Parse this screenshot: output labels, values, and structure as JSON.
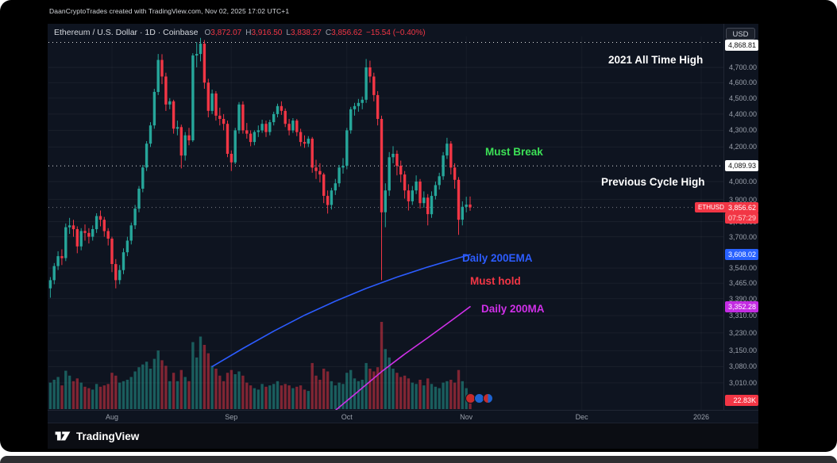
{
  "page": {
    "attribution": "DaanCryptoTrades created with TradingView.com, Nov 02, 2025 17:02 UTC+1"
  },
  "header": {
    "symbol_line": "Ethereum / U.S. Dollar · 1D · Coinbase",
    "ohlc": {
      "o_label": "O",
      "o": "3,872.07",
      "h_label": "H",
      "h": "3,916.50",
      "l_label": "L",
      "l": "3,838.27",
      "c_label": "C",
      "c": "3,856.62",
      "change": "−15.54 (−0.40%)"
    },
    "currency_button": "USD"
  },
  "annotations": {
    "ath": "2021 All Time High",
    "must_break": "Must Break",
    "prev_cycle": "Previous Cycle High",
    "ema": "Daily 200EMA",
    "must_hold": "Must hold",
    "ma": "Daily 200MA"
  },
  "symbol_chip": "ETHUSD",
  "footer": {
    "brand": "TradingView"
  },
  "colors": {
    "up": "#26a69a",
    "down": "#f23645",
    "vol_up": "rgba(38,166,154,0.5)",
    "vol_down": "rgba(242,54,69,0.5)",
    "ema": "#2c5cff",
    "ma": "#cf30e8",
    "accent_red": "#f23645",
    "accent_blue": "#2962ff",
    "accent_magenta": "#c32ce2"
  },
  "chart_data": {
    "type": "candlestick",
    "symbol": "ETHUSD",
    "exchange": "Coinbase",
    "interval": "1D",
    "scale": "log",
    "start_date": "2025-07-16",
    "end_date": "2025-11-02",
    "ylim": [
      2940,
      4980
    ],
    "grid": true,
    "price_ticks": [
      4700,
      4600,
      4500,
      4400,
      4300,
      4200,
      4000,
      3900,
      3780,
      3700,
      3540,
      3465,
      3390,
      3310,
      3230,
      3150,
      3080,
      3010
    ],
    "month_ticks": [
      {
        "label": "Aug",
        "index": 16
      },
      {
        "label": "Sep",
        "index": 47
      },
      {
        "label": "Oct",
        "index": 77
      },
      {
        "label": "Nov",
        "index": 108
      },
      {
        "label": "Dec",
        "index": 138
      },
      {
        "label": "2026",
        "index": 169
      }
    ],
    "levels": [
      {
        "name": "2021-ath-line",
        "price": 4868.81,
        "color": "#ffffff",
        "dash": "1,4",
        "opacity": 0.85
      },
      {
        "name": "previous-cycle-high-line",
        "price": 4089.93,
        "color": "#ffffff",
        "dash": "1,4",
        "opacity": 0.85
      },
      {
        "name": "last-price-line",
        "price": 3856.62,
        "color": "#9598a1",
        "dash": "1,4",
        "opacity": 0.8
      }
    ],
    "axis_labels": [
      {
        "name": "ath-price-label",
        "text": "4,868.81",
        "price": 4868.81,
        "dy": 3,
        "bg": "#ffffff",
        "fg": "#111111"
      },
      {
        "name": "prev-cycle-price-label",
        "text": "4,089.93",
        "price": 4089.93,
        "dy": 0,
        "bg": "#ffffff",
        "fg": "#111111"
      },
      {
        "name": "last-price-label",
        "text": "3,856.62",
        "price": 3856.62,
        "dy": 0,
        "bg": "#f23645",
        "fg": "#ffffff"
      },
      {
        "name": "countdown-label",
        "text": "07:57:29",
        "price": 3856.62,
        "dy": 13,
        "bg": "#f23645",
        "fg": "#ffd7d7"
      },
      {
        "name": "ema-price-label",
        "text": "3,608.02",
        "price": 3608.02,
        "dy": 0,
        "bg": "#2962ff",
        "fg": "#ffffff"
      },
      {
        "name": "ma-price-label",
        "text": "3,352.28",
        "price": 3352.28,
        "dy": 0,
        "bg": "#c32ce2",
        "fg": "#ffffff"
      },
      {
        "name": "volume-label",
        "text": "22.83K",
        "price": null,
        "y": 475,
        "dy": 0,
        "bg": "#f23645",
        "fg": "#ffffff"
      }
    ],
    "overlays": [
      {
        "name": "Daily 200EMA",
        "color": "#2c5cff",
        "points": [
          [
            42,
            3080
          ],
          [
            50,
            3160
          ],
          [
            58,
            3238
          ],
          [
            66,
            3312
          ],
          [
            74,
            3378
          ],
          [
            82,
            3440
          ],
          [
            90,
            3495
          ],
          [
            98,
            3545
          ],
          [
            104,
            3580
          ],
          [
            109,
            3608.02
          ]
        ]
      },
      {
        "name": "Daily 200MA",
        "color": "#cf30e8",
        "points": [
          [
            74,
            2895
          ],
          [
            80,
            2975
          ],
          [
            86,
            3058
          ],
          [
            92,
            3135
          ],
          [
            98,
            3208
          ],
          [
            103,
            3272
          ],
          [
            106,
            3312
          ],
          [
            109,
            3352.28
          ]
        ]
      }
    ],
    "last_volume_label": "22.83K",
    "candles": [
      [
        3440,
        3495,
        3395,
        3480,
        38
      ],
      [
        3480,
        3565,
        3460,
        3550,
        42
      ],
      [
        3550,
        3625,
        3530,
        3600,
        46
      ],
      [
        3600,
        3635,
        3555,
        3590,
        34
      ],
      [
        3590,
        3770,
        3575,
        3750,
        55
      ],
      [
        3750,
        3800,
        3715,
        3760,
        48
      ],
      [
        3760,
        3790,
        3700,
        3740,
        40
      ],
      [
        3740,
        3755,
        3615,
        3650,
        44
      ],
      [
        3650,
        3745,
        3630,
        3730,
        38
      ],
      [
        3730,
        3765,
        3680,
        3720,
        32
      ],
      [
        3720,
        3745,
        3665,
        3700,
        30
      ],
      [
        3700,
        3760,
        3680,
        3740,
        28
      ],
      [
        3740,
        3825,
        3720,
        3810,
        36
      ],
      [
        3810,
        3840,
        3755,
        3790,
        32
      ],
      [
        3790,
        3805,
        3700,
        3730,
        34
      ],
      [
        3730,
        3745,
        3655,
        3690,
        36
      ],
      [
        3690,
        3700,
        3520,
        3560,
        52
      ],
      [
        3560,
        3585,
        3440,
        3480,
        48
      ],
      [
        3480,
        3555,
        3460,
        3530,
        38
      ],
      [
        3530,
        3640,
        3510,
        3620,
        40
      ],
      [
        3620,
        3700,
        3600,
        3680,
        42
      ],
      [
        3680,
        3775,
        3660,
        3760,
        46
      ],
      [
        3760,
        3870,
        3740,
        3850,
        54
      ],
      [
        3850,
        3975,
        3830,
        3960,
        60
      ],
      [
        3960,
        4095,
        3940,
        4080,
        64
      ],
      [
        4080,
        4235,
        4060,
        4220,
        68
      ],
      [
        4220,
        4350,
        4200,
        4330,
        58
      ],
      [
        4330,
        4560,
        4310,
        4540,
        72
      ],
      [
        4540,
        4790,
        4520,
        4750,
        84
      ],
      [
        4750,
        4788,
        4590,
        4640,
        70
      ],
      [
        4640,
        4665,
        4420,
        4460,
        62
      ],
      [
        4460,
        4500,
        4430,
        4480,
        40
      ],
      [
        4480,
        4490,
        4280,
        4310,
        52
      ],
      [
        4310,
        4360,
        4270,
        4320,
        40
      ],
      [
        4320,
        4335,
        4075,
        4150,
        56
      ],
      [
        4150,
        4290,
        4120,
        4270,
        46
      ],
      [
        4270,
        4315,
        4210,
        4240,
        40
      ],
      [
        4240,
        4795,
        4230,
        4780,
        96
      ],
      [
        4780,
        4870,
        4700,
        4790,
        74
      ],
      [
        4790,
        4900,
        4740,
        4860,
        104
      ],
      [
        4860,
        4885,
        4560,
        4600,
        92
      ],
      [
        4600,
        4625,
        4380,
        4420,
        80
      ],
      [
        4420,
        4555,
        4400,
        4530,
        62
      ],
      [
        4530,
        4545,
        4360,
        4390,
        58
      ],
      [
        4390,
        4440,
        4330,
        4370,
        48
      ],
      [
        4370,
        4400,
        4300,
        4340,
        40
      ],
      [
        4340,
        4360,
        4140,
        4160,
        52
      ],
      [
        4160,
        4180,
        4060,
        4110,
        56
      ],
      [
        4110,
        4315,
        4100,
        4300,
        50
      ],
      [
        4300,
        4475,
        4280,
        4460,
        54
      ],
      [
        4460,
        4480,
        4280,
        4300,
        48
      ],
      [
        4300,
        4345,
        4250,
        4280,
        38
      ],
      [
        4280,
        4300,
        4205,
        4230,
        34
      ],
      [
        4230,
        4300,
        4210,
        4290,
        30
      ],
      [
        4290,
        4330,
        4260,
        4300,
        28
      ],
      [
        4300,
        4365,
        4285,
        4340,
        36
      ],
      [
        4340,
        4360,
        4260,
        4290,
        32
      ],
      [
        4290,
        4365,
        4270,
        4350,
        34
      ],
      [
        4350,
        4415,
        4330,
        4400,
        36
      ],
      [
        4400,
        4465,
        4380,
        4450,
        40
      ],
      [
        4450,
        4480,
        4395,
        4420,
        34
      ],
      [
        4420,
        4435,
        4320,
        4340,
        36
      ],
      [
        4340,
        4370,
        4270,
        4300,
        34
      ],
      [
        4300,
        4375,
        4285,
        4360,
        30
      ],
      [
        4360,
        4370,
        4265,
        4290,
        32
      ],
      [
        4290,
        4310,
        4205,
        4230,
        34
      ],
      [
        4230,
        4270,
        4195,
        4220,
        28
      ],
      [
        4220,
        4265,
        4200,
        4250,
        26
      ],
      [
        4250,
        4260,
        4050,
        4080,
        66
      ],
      [
        4080,
        4125,
        4015,
        4060,
        48
      ],
      [
        4060,
        4105,
        3995,
        4040,
        42
      ],
      [
        4040,
        4050,
        3880,
        3920,
        58
      ],
      [
        3920,
        3950,
        3823,
        3870,
        54
      ],
      [
        3870,
        3965,
        3845,
        3950,
        40
      ],
      [
        3950,
        4015,
        3925,
        3990,
        34
      ],
      [
        3990,
        4095,
        3970,
        4080,
        38
      ],
      [
        4080,
        4135,
        4045,
        4090,
        36
      ],
      [
        4090,
        4315,
        4070,
        4300,
        52
      ],
      [
        4300,
        4445,
        4280,
        4430,
        56
      ],
      [
        4430,
        4470,
        4390,
        4450,
        44
      ],
      [
        4450,
        4495,
        4415,
        4470,
        40
      ],
      [
        4470,
        4510,
        4430,
        4490,
        42
      ],
      [
        4490,
        4756,
        4470,
        4700,
        66
      ],
      [
        4700,
        4745,
        4600,
        4640,
        58
      ],
      [
        4640,
        4665,
        4480,
        4520,
        54
      ],
      [
        4520,
        4545,
        4330,
        4370,
        60
      ],
      [
        4370,
        4390,
        3480,
        3830,
        125
      ],
      [
        3830,
        3990,
        3750,
        3950,
        86
      ],
      [
        3950,
        4170,
        3920,
        4140,
        74
      ],
      [
        4140,
        4205,
        4105,
        4160,
        58
      ],
      [
        4160,
        4180,
        4035,
        4090,
        52
      ],
      [
        4090,
        4120,
        3995,
        4040,
        46
      ],
      [
        4040,
        4060,
        3905,
        3950,
        48
      ],
      [
        3950,
        3985,
        3840,
        3890,
        44
      ],
      [
        3890,
        3975,
        3870,
        3950,
        38
      ],
      [
        3950,
        4035,
        3930,
        4000,
        36
      ],
      [
        4000,
        4015,
        3850,
        3880,
        42
      ],
      [
        3880,
        3945,
        3855,
        3910,
        34
      ],
      [
        3910,
        3930,
        3760,
        3820,
        44
      ],
      [
        3820,
        3945,
        3800,
        3920,
        36
      ],
      [
        3920,
        4000,
        3900,
        3980,
        32
      ],
      [
        3980,
        4050,
        3955,
        4030,
        30
      ],
      [
        4030,
        4170,
        4010,
        4150,
        38
      ],
      [
        4150,
        4255,
        4130,
        4220,
        40
      ],
      [
        4220,
        4235,
        4040,
        4080,
        42
      ],
      [
        4080,
        4105,
        3960,
        4010,
        38
      ],
      [
        4010,
        4025,
        3710,
        3790,
        56
      ],
      [
        3790,
        3890,
        3760,
        3860,
        40
      ],
      [
        3860,
        3915,
        3830,
        3872,
        30
      ],
      [
        3872.07,
        3916.5,
        3838.27,
        3856.62,
        22.83
      ]
    ]
  }
}
